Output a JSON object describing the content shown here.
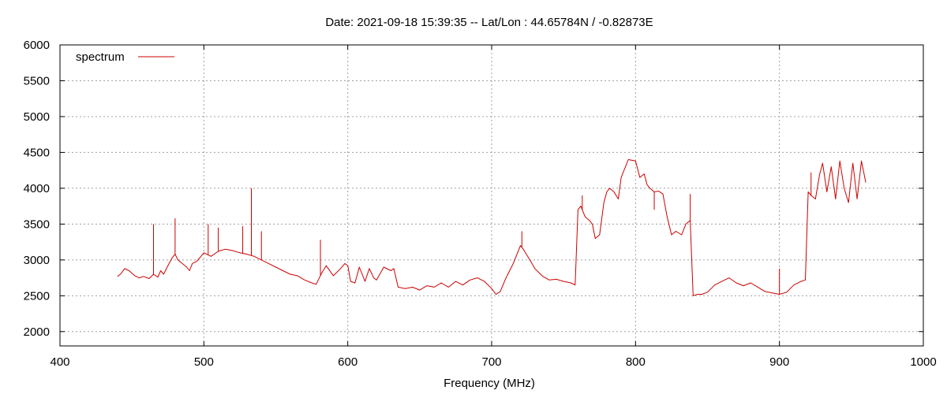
{
  "chart_data": {
    "type": "line",
    "title": "Date: 2021-09-18 15:39:35  --  Lat/Lon : 44.65784N / -0.82873E",
    "xlabel": "Frequency (MHz)",
    "ylabel": "",
    "xlim": [
      400,
      1000
    ],
    "ylim": [
      1800,
      6000
    ],
    "xticks": [
      400,
      500,
      600,
      700,
      800,
      900,
      1000
    ],
    "yticks": [
      2000,
      2500,
      3000,
      3500,
      4000,
      4500,
      5000,
      5500,
      6000
    ],
    "grid": true,
    "legend_position": "top-left",
    "series": [
      {
        "name": "spectrum",
        "color": "#cc0000",
        "x": [
          440,
          442,
          445,
          448,
          452,
          455,
          458,
          462,
          465,
          468,
          470,
          472,
          475,
          478,
          480,
          482,
          485,
          488,
          490,
          492,
          495,
          498,
          500,
          505,
          510,
          515,
          520,
          525,
          530,
          535,
          540,
          545,
          550,
          555,
          560,
          565,
          570,
          575,
          578,
          582,
          585,
          590,
          595,
          598,
          600,
          602,
          605,
          608,
          612,
          615,
          618,
          620,
          625,
          630,
          632,
          635,
          640,
          645,
          650,
          655,
          660,
          665,
          670,
          675,
          680,
          685,
          690,
          695,
          700,
          703,
          706,
          710,
          715,
          718,
          720,
          722,
          725,
          728,
          730,
          735,
          740,
          745,
          750,
          755,
          758,
          760,
          762,
          765,
          768,
          770,
          772,
          775,
          778,
          780,
          782,
          785,
          788,
          790,
          795,
          800,
          803,
          806,
          808,
          810,
          813,
          816,
          819,
          822,
          825,
          828,
          832,
          835,
          838,
          840,
          843,
          846,
          850,
          855,
          860,
          865,
          870,
          875,
          880,
          885,
          890,
          895,
          900,
          905,
          910,
          915,
          918,
          920,
          922,
          925,
          928,
          930,
          933,
          936,
          939,
          942,
          945,
          948,
          951,
          954,
          957,
          960
        ],
        "y": [
          2770,
          2800,
          2880,
          2850,
          2780,
          2750,
          2770,
          2740,
          2800,
          2760,
          2850,
          2800,
          2920,
          3030,
          3080,
          3000,
          2950,
          2900,
          2850,
          2950,
          2980,
          3050,
          3100,
          3050,
          3120,
          3150,
          3130,
          3100,
          3080,
          3050,
          3000,
          2950,
          2900,
          2850,
          2800,
          2780,
          2720,
          2680,
          2660,
          2820,
          2920,
          2780,
          2880,
          2950,
          2920,
          2700,
          2680,
          2900,
          2700,
          2880,
          2750,
          2720,
          2900,
          2850,
          2880,
          2620,
          2600,
          2620,
          2580,
          2640,
          2620,
          2680,
          2620,
          2700,
          2650,
          2720,
          2750,
          2700,
          2600,
          2520,
          2560,
          2750,
          2950,
          3100,
          3200,
          3150,
          3050,
          2950,
          2880,
          2780,
          2720,
          2730,
          2700,
          2680,
          2650,
          3700,
          3750,
          3600,
          3550,
          3500,
          3300,
          3350,
          3800,
          3950,
          4000,
          3950,
          3850,
          4150,
          4400,
          4380,
          4150,
          4200,
          4050,
          4000,
          3950,
          3960,
          3920,
          3600,
          3350,
          3400,
          3350,
          3500,
          3550,
          2500,
          2520,
          2520,
          2550,
          2650,
          2700,
          2750,
          2680,
          2640,
          2680,
          2620,
          2560,
          2540,
          2520,
          2550,
          2650,
          2700,
          2720,
          3950,
          3900,
          3850,
          4200,
          4350,
          3950,
          4300,
          3850,
          4380,
          4000,
          3800,
          4350,
          3850,
          4380,
          4080
        ],
        "spikes": [
          {
            "x": 465,
            "y": 3500
          },
          {
            "x": 480,
            "y": 3580
          },
          {
            "x": 503,
            "y": 3500
          },
          {
            "x": 510,
            "y": 3450
          },
          {
            "x": 527,
            "y": 3470
          },
          {
            "x": 533,
            "y": 4000
          },
          {
            "x": 540,
            "y": 3400
          },
          {
            "x": 581,
            "y": 3280
          },
          {
            "x": 721,
            "y": 3400
          },
          {
            "x": 763,
            "y": 3900
          },
          {
            "x": 813,
            "y": 3700
          },
          {
            "x": 838,
            "y": 3920
          },
          {
            "x": 900,
            "y": 2880
          },
          {
            "x": 922,
            "y": 4220
          }
        ]
      }
    ]
  }
}
